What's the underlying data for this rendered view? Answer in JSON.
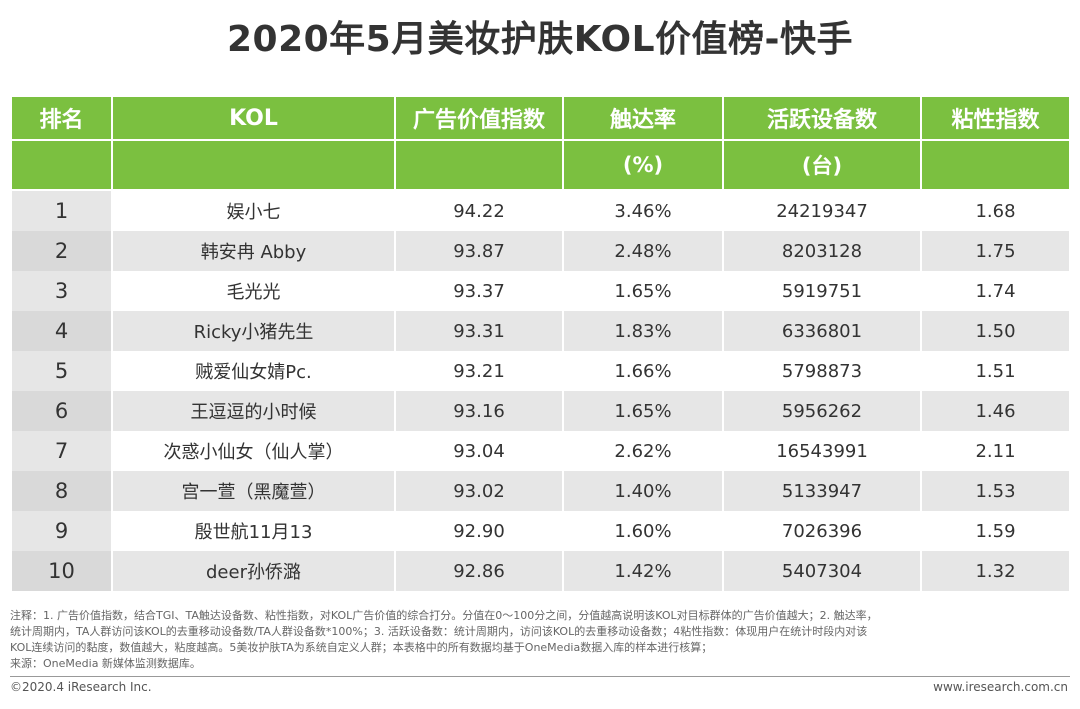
{
  "title": "2020年5月美妆护肤KOL价值榜-快手",
  "colors": {
    "header_green": "#7bc040",
    "row_gray": "#e6e6e6"
  },
  "table": {
    "headers": [
      "排名",
      "KOL",
      "广告价值指数",
      "触达率",
      "活跃设备数",
      "粘性指数"
    ],
    "units": [
      "",
      "",
      "",
      "(%)",
      "(台)",
      ""
    ],
    "rows": [
      [
        "1",
        "娱小七",
        "94.22",
        "3.46%",
        "24219347",
        "1.68"
      ],
      [
        "2",
        "韩安冉 Abby",
        "93.87",
        "2.48%",
        "8203128",
        "1.75"
      ],
      [
        "3",
        "毛光光",
        "93.37",
        "1.65%",
        "5919751",
        "1.74"
      ],
      [
        "4",
        "Ricky小猪先生",
        "93.31",
        "1.83%",
        "6336801",
        "1.50"
      ],
      [
        "5",
        "贼爱仙女婧Pc.",
        "93.21",
        "1.66%",
        "5798873",
        "1.51"
      ],
      [
        "6",
        "王逗逗的小时候",
        "93.16",
        "1.65%",
        "5956262",
        "1.46"
      ],
      [
        "7",
        "次惑小仙女（仙人掌）",
        "93.04",
        "2.62%",
        "16543991",
        "2.11"
      ],
      [
        "8",
        "宫一萱（黑魔萱）",
        "93.02",
        "1.40%",
        "5133947",
        "1.53"
      ],
      [
        "9",
        "殷世航11月13",
        "92.90",
        "1.60%",
        "7026396",
        "1.59"
      ],
      [
        "10",
        "deer孙侨潞",
        "92.86",
        "1.42%",
        "5407304",
        "1.32"
      ]
    ]
  },
  "notes": [
    "注释：1. 广告价值指数，结合TGI、TA触达设备数、粘性指数，对KOL广告价值的综合打分。分值在0～100分之间，分值越高说明该KOL对目标群体的广告价值越大；2. 触达率，",
    "统计周期内，TA人群访问该KOL的去重移动设备数/TA人群设备数*100%；3. 活跃设备数：统计周期内，访问该KOL的去重移动设备数；4粘性指数：体现用户在统计时段内对该",
    "KOL连续访问的黏度，数值越大，粘度越高。5美妆护肤TA为系统自定义人群；本表格中的所有数据均基于OneMedia数据入库的样本进行核算；",
    "来源：OneMedia 新媒体监测数据库。"
  ],
  "footer": {
    "copyright": "©2020.4 iResearch Inc.",
    "website": "www.iresearch.com.cn"
  }
}
